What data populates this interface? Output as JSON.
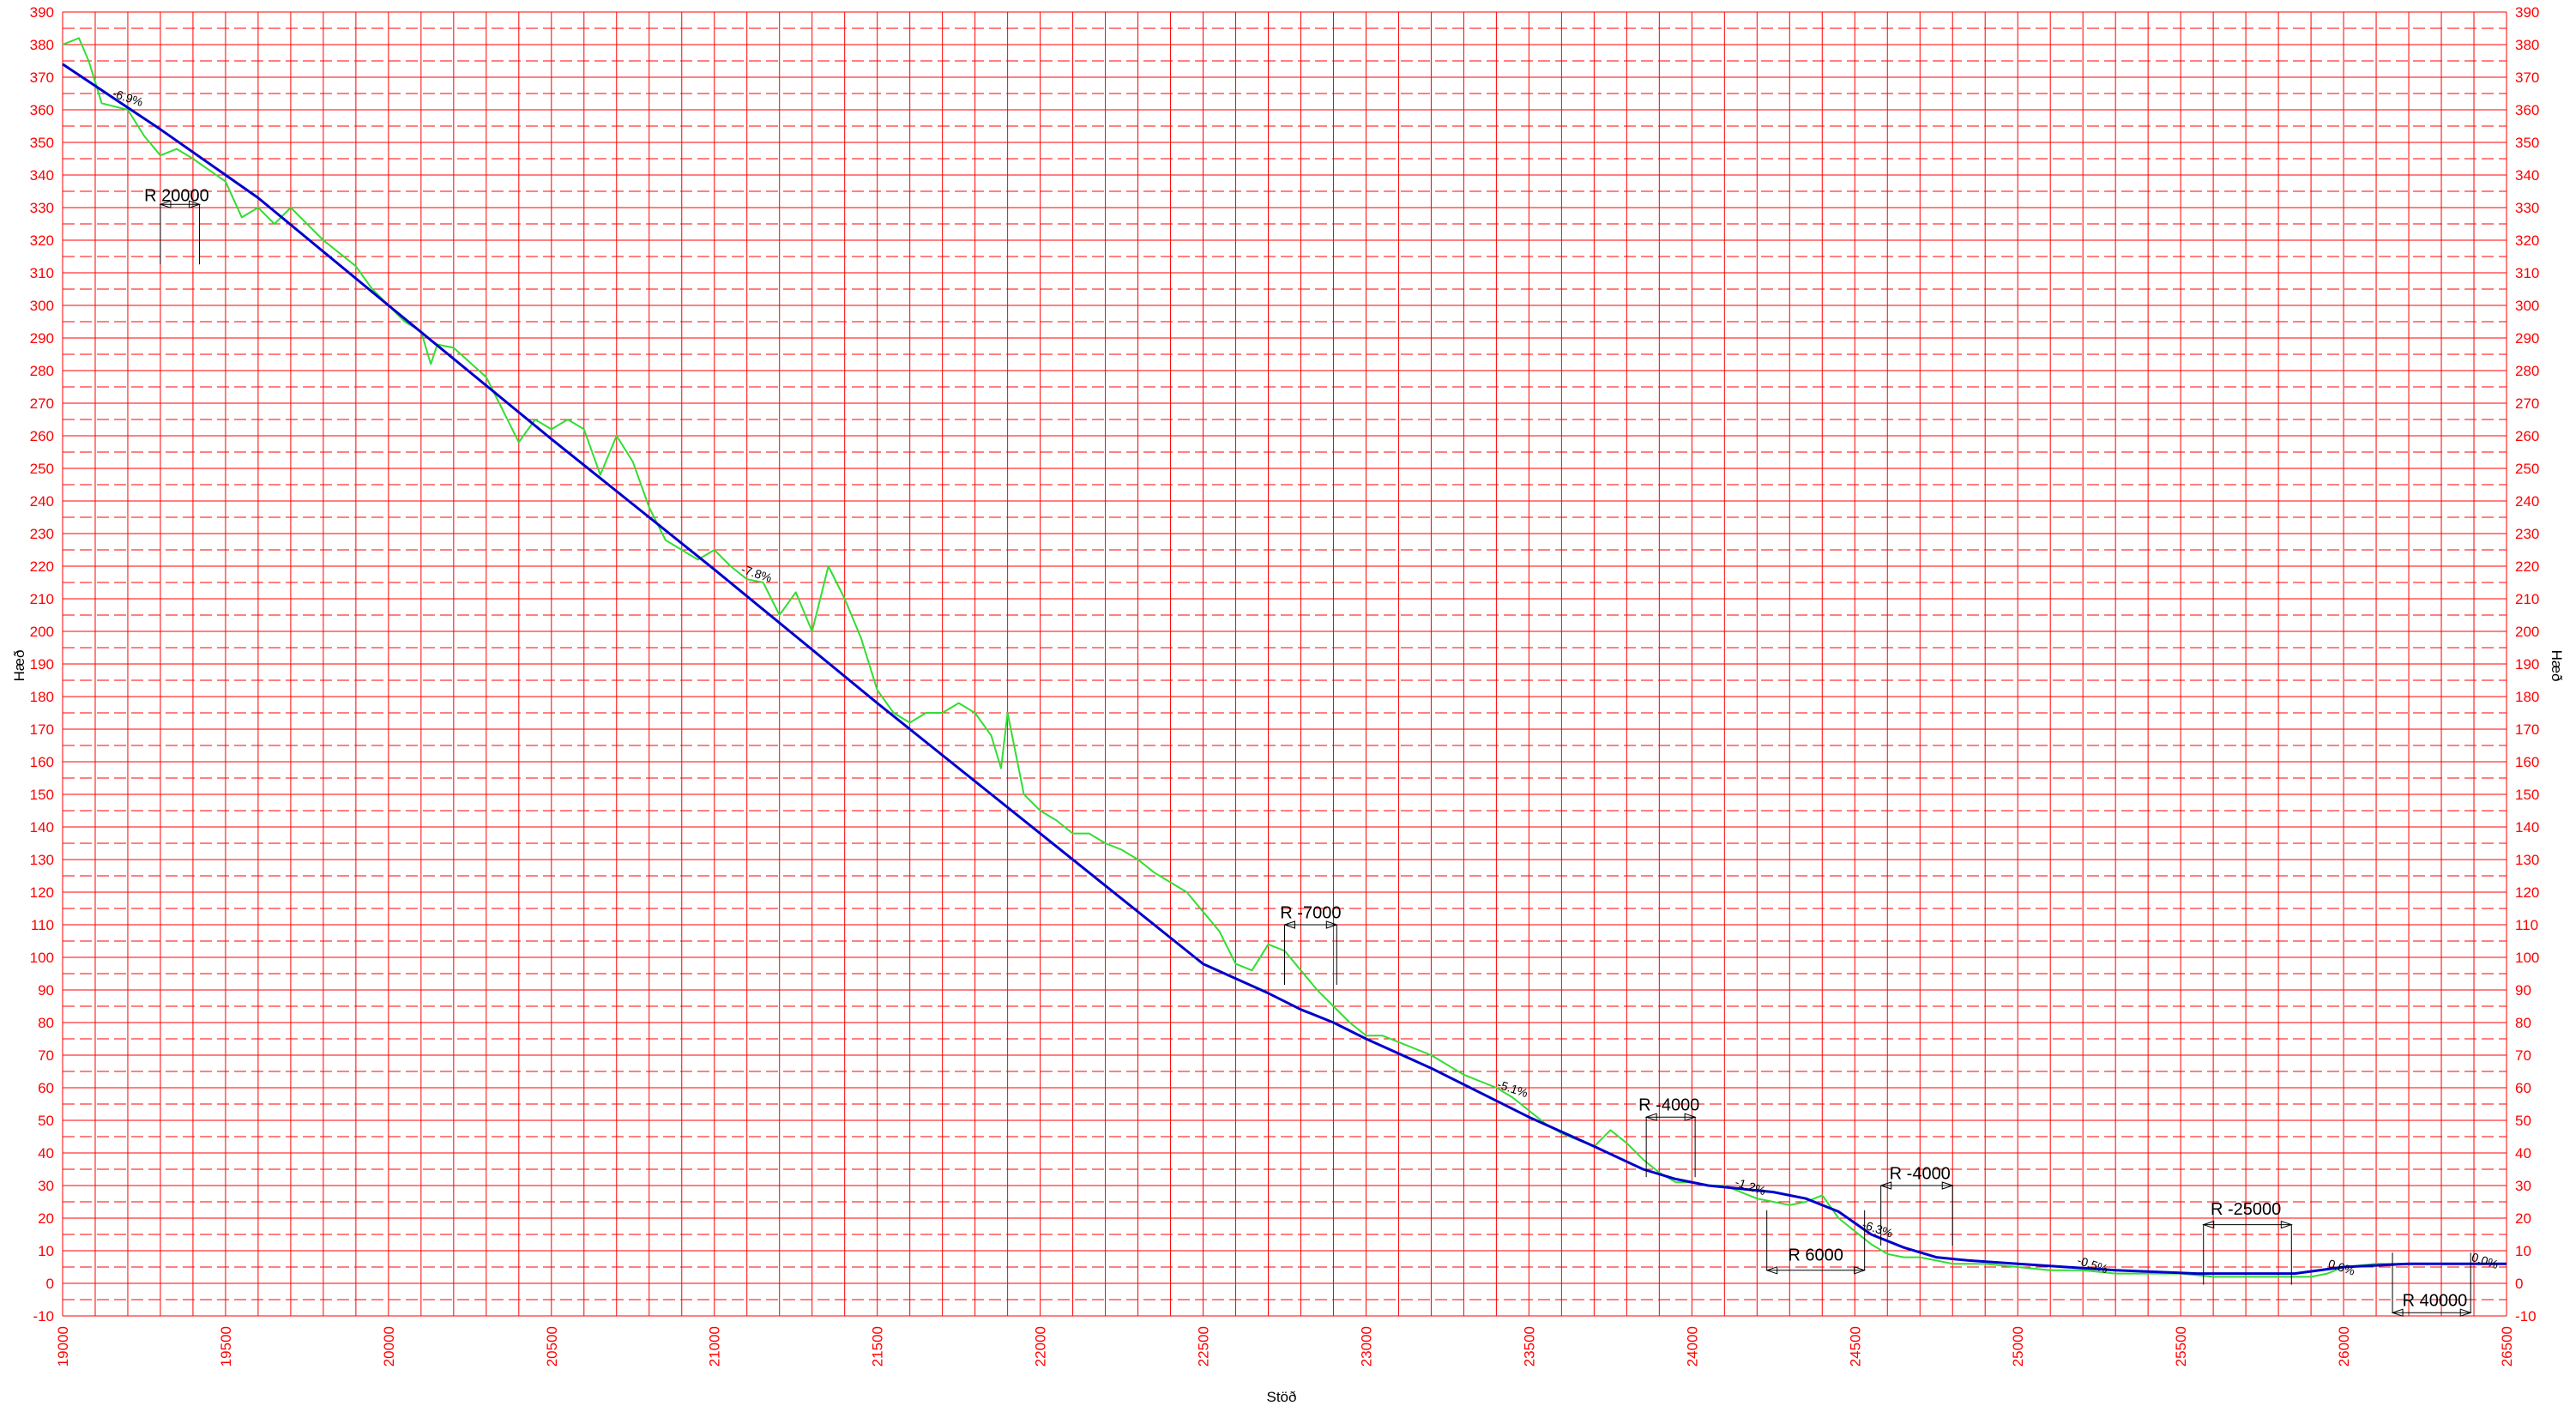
{
  "chart_data": {
    "type": "line",
    "title": "",
    "xlabel": "Stöð",
    "ylabel": "Hæð",
    "xlim": [
      19000,
      26500
    ],
    "ylim": [
      -10,
      390
    ],
    "grid": true,
    "x_ticks": [
      "19000",
      "19500",
      "20000",
      "20500",
      "21000",
      "21500",
      "22000",
      "22500",
      "23000",
      "23500",
      "24000",
      "24500",
      "25000",
      "25500",
      "26000",
      "26500"
    ],
    "y_ticks": [
      "-10",
      "0",
      "10",
      "20",
      "30",
      "40",
      "50",
      "60",
      "70",
      "80",
      "90",
      "100",
      "110",
      "120",
      "130",
      "140",
      "150",
      "160",
      "170",
      "180",
      "190",
      "200",
      "210",
      "220",
      "230",
      "240",
      "250",
      "260",
      "270",
      "280",
      "290",
      "300",
      "310",
      "320",
      "330",
      "340",
      "350",
      "360",
      "370",
      "380",
      "390"
    ],
    "colors": {
      "grid": "#ff0000",
      "design": "#0000cc",
      "terrain": "#33dd33",
      "annotation": "#000000"
    },
    "series": [
      {
        "key": "design",
        "x": [
          19000,
          19300,
          19600,
          20000,
          20500,
          21000,
          21500,
          22000,
          22500,
          22700,
          22800,
          22900,
          23000,
          23200,
          23500,
          23700,
          23850,
          23950,
          24050,
          24150,
          24250,
          24350,
          24450,
          24550,
          24650,
          24750,
          24850,
          25000,
          25300,
          25550,
          25700,
          25850,
          26000,
          26200,
          26500
        ],
        "y": [
          374,
          354,
          333,
          300,
          259,
          219,
          178,
          138,
          98,
          89,
          84,
          80,
          75,
          66,
          51,
          42,
          35,
          32,
          30,
          29,
          28,
          26,
          22,
          15,
          11,
          8,
          7,
          6,
          4,
          3,
          3,
          3,
          5,
          6,
          6
        ]
      },
      {
        "key": "terrain",
        "x": [
          19000,
          19050,
          19080,
          19120,
          19200,
          19250,
          19300,
          19350,
          19400,
          19500,
          19550,
          19600,
          19650,
          19700,
          19800,
          19850,
          19900,
          19950,
          20000,
          20050,
          20100,
          20130,
          20150,
          20200,
          20300,
          20350,
          20400,
          20450,
          20500,
          20550,
          20600,
          20650,
          20700,
          20750,
          20800,
          20850,
          20900,
          20950,
          21000,
          21050,
          21100,
          21150,
          21200,
          21250,
          21300,
          21350,
          21400,
          21450,
          21500,
          21550,
          21600,
          21650,
          21700,
          21750,
          21800,
          21850,
          21880,
          21900,
          21950,
          22000,
          22050,
          22100,
          22150,
          22200,
          22250,
          22300,
          22350,
          22400,
          22450,
          22500,
          22550,
          22600,
          22650,
          22700,
          22750,
          22800,
          22850,
          22900,
          22950,
          23000,
          23050,
          23100,
          23200,
          23300,
          23400,
          23450,
          23500,
          23550,
          23600,
          23650,
          23700,
          23750,
          23800,
          23850,
          23900,
          23950,
          24000,
          24050,
          24100,
          24150,
          24200,
          24250,
          24300,
          24350,
          24400,
          24450,
          24500,
          24550,
          24600,
          24650,
          24700,
          24750,
          24800,
          24850,
          24900,
          25000,
          25100,
          25200,
          25300,
          25400,
          25500,
          25600,
          25700,
          25800,
          25900,
          25950,
          26000,
          26100,
          26200,
          26300,
          26400,
          26500
        ],
        "y": [
          380,
          382,
          375,
          362,
          360,
          352,
          346,
          348,
          345,
          338,
          327,
          330,
          325,
          330,
          320,
          316,
          312,
          305,
          300,
          295,
          292,
          282,
          288,
          287,
          278,
          268,
          258,
          265,
          262,
          265,
          262,
          248,
          260,
          252,
          238,
          228,
          225,
          222,
          225,
          220,
          216,
          215,
          205,
          212,
          200,
          220,
          210,
          198,
          182,
          175,
          172,
          175,
          175,
          178,
          175,
          168,
          158,
          175,
          150,
          145,
          142,
          138,
          138,
          135,
          133,
          130,
          126,
          123,
          120,
          114,
          108,
          98,
          96,
          104,
          102,
          96,
          90,
          85,
          80,
          76,
          76,
          74,
          70,
          64,
          60,
          57,
          53,
          49,
          46,
          44,
          42,
          47,
          43,
          38,
          34,
          31,
          31,
          30,
          30,
          28,
          26,
          25,
          24,
          25,
          27,
          20,
          16,
          12,
          9,
          8,
          8,
          7,
          6,
          6,
          6,
          5,
          4,
          4,
          3,
          3,
          3,
          2,
          2,
          2,
          2,
          3,
          5,
          6,
          6,
          6,
          6,
          6
        ]
      }
    ],
    "grade_labels": [
      {
        "x": 19150,
        "y": 364,
        "text": "-6.9%"
      },
      {
        "x": 21080,
        "y": 218,
        "text": "-7.8%"
      },
      {
        "x": 23400,
        "y": 60,
        "text": "-5.1%"
      },
      {
        "x": 24130,
        "y": 30,
        "text": "-1.2%"
      },
      {
        "x": 24520,
        "y": 17,
        "text": "-6.3%"
      },
      {
        "x": 25180,
        "y": 6,
        "text": "-0.5%"
      },
      {
        "x": 25950,
        "y": 5,
        "text": "0.6%"
      },
      {
        "x": 26390,
        "y": 7,
        "text": "0.0%"
      }
    ],
    "curve_labels": [
      {
        "text": "R  20000",
        "label_x": 19350,
        "label_y": 332,
        "x1": 19300,
        "x2": 19420,
        "dim_y": 331,
        "dir": "up"
      },
      {
        "text": "R  -7000",
        "label_x": 22830,
        "label_y": 112,
        "x1": 22750,
        "x2": 22910,
        "dim_y": 110,
        "dir": "up"
      },
      {
        "text": "R  -4000",
        "label_x": 23930,
        "label_y": 53,
        "x1": 23860,
        "x2": 24010,
        "dim_y": 51,
        "dir": "up"
      },
      {
        "text": "R  6000",
        "label_x": 24380,
        "label_y": 7,
        "x1": 24230,
        "x2": 24530,
        "dim_y": 4,
        "dir": "down"
      },
      {
        "text": "R  -4000",
        "label_x": 24700,
        "label_y": 32,
        "x1": 24580,
        "x2": 24800,
        "dim_y": 30,
        "dir": "up"
      },
      {
        "text": "R  -25000",
        "label_x": 25700,
        "label_y": 21,
        "x1": 25570,
        "x2": 25840,
        "dim_y": 18,
        "dir": "up"
      },
      {
        "text": "R  40000",
        "label_x": 26280,
        "label_y": -7,
        "x1": 26150,
        "x2": 26390,
        "dim_y": -9,
        "dir": "down"
      }
    ]
  }
}
